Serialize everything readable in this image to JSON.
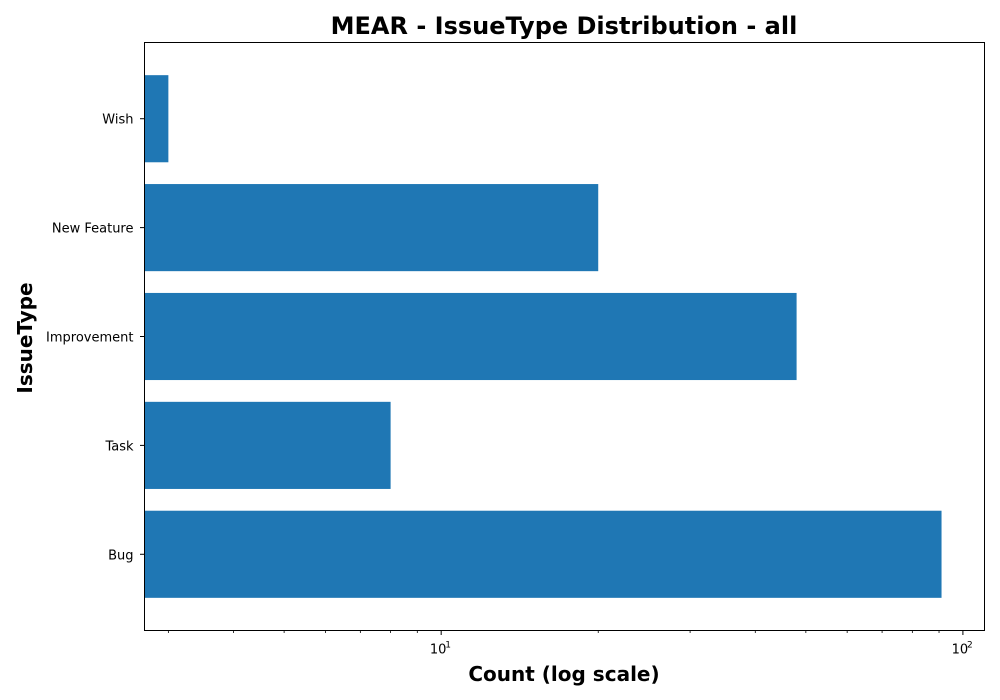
{
  "chart_data": {
    "type": "bar",
    "orientation": "horizontal",
    "title": "MEAR - IssueType Distribution - all",
    "xlabel": "Count (log scale)",
    "ylabel": "IssueType",
    "x_scale": "log",
    "xlim": [
      2.7,
      110
    ],
    "x_major_ticks": [
      {
        "value": 10,
        "base": "10",
        "exponent": "1"
      },
      {
        "value": 100,
        "base": "10",
        "exponent": "2"
      }
    ],
    "categories": [
      "Bug",
      "Task",
      "Improvement",
      "New Feature",
      "Wish"
    ],
    "values": [
      91,
      8,
      48,
      20,
      3
    ],
    "bar_color": "#1f77b4",
    "grid": false,
    "legend": "none"
  }
}
